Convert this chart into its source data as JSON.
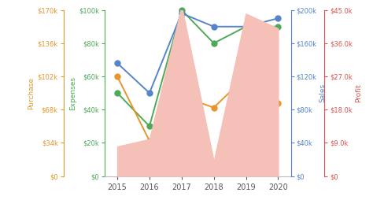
{
  "years": [
    2015,
    2016,
    2017,
    2018,
    2019,
    2020
  ],
  "expenses": [
    50000,
    30000,
    100000,
    80000,
    90000,
    90000
  ],
  "purchase": [
    102000,
    36000,
    82000,
    70000,
    102000,
    75000
  ],
  "sales": [
    136000,
    100000,
    196000,
    180000,
    180000,
    190000
  ],
  "profit": [
    8000,
    10000,
    46000,
    4000,
    44000,
    40000
  ],
  "expenses_color": "#4daa57",
  "purchase_color": "#e8952a",
  "sales_color": "#5585c8",
  "profit_color": "#d9534f",
  "area_color": "#f5c0b8",
  "expenses_ylim": [
    0,
    100000
  ],
  "purchase_ylim": [
    0,
    170000
  ],
  "sales_ylim": [
    0,
    200000
  ],
  "profit_ylim": [
    0,
    45000
  ],
  "expenses_ticks": [
    0,
    20000,
    40000,
    60000,
    80000,
    100000
  ],
  "purchase_ticks": [
    0,
    34000,
    68000,
    102000,
    136000,
    170000
  ],
  "sales_ticks": [
    0,
    40000,
    80000,
    120000,
    160000,
    200000
  ],
  "profit_ticks": [
    0,
    9000,
    18000,
    27000,
    36000,
    45000
  ],
  "bg_color": "#ffffff",
  "tick_color": "#555555",
  "expenses_label": "Expenses",
  "purchase_label": "Purchase",
  "sales_label": "Sales",
  "profit_label": "Profit",
  "xlim": [
    2014.6,
    2020.4
  ],
  "xticks": [
    2015,
    2016,
    2017,
    2018,
    2019,
    2020
  ]
}
